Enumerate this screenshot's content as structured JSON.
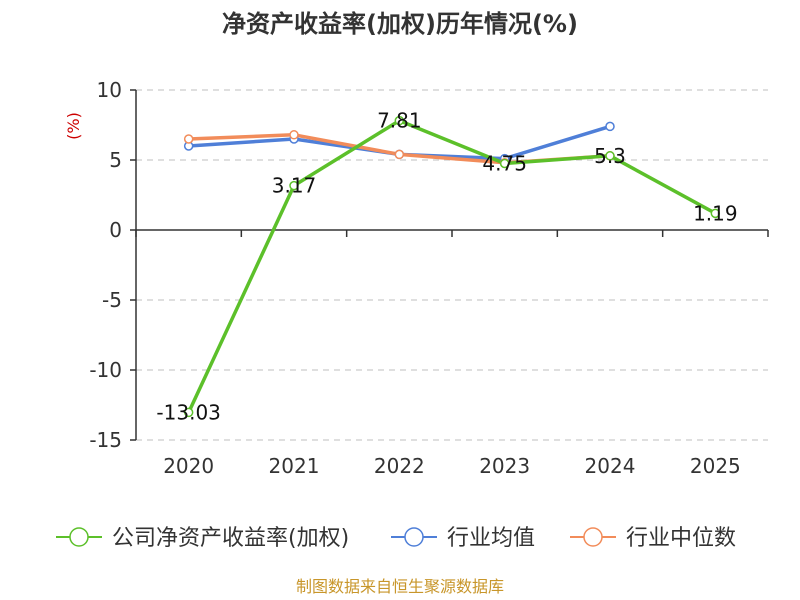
{
  "chart_data": {
    "type": "line",
    "title": "净资产收益率(加权)历年情况(%)",
    "ylabel": "(%)",
    "categories": [
      "2020",
      "2021",
      "2022",
      "2023",
      "2024",
      "2025"
    ],
    "ylim": [
      -15,
      10
    ],
    "yticks": [
      10,
      5,
      0,
      -5,
      -10,
      -15
    ],
    "grid": true,
    "legend_position": "bottom",
    "series": [
      {
        "name": "公司净资产收益率(加权)",
        "color": "#5cc02a",
        "values": [
          -13.03,
          3.17,
          7.81,
          4.75,
          5.3,
          1.19
        ],
        "labels": [
          "-13.03",
          "3.17",
          "7.81",
          "4.75",
          "5.3",
          "1.19"
        ]
      },
      {
        "name": "行业均值",
        "color": "#4f7fd8",
        "values": [
          6.0,
          6.5,
          5.4,
          5.1,
          7.4,
          null
        ]
      },
      {
        "name": "行业中位数",
        "color": "#f28c5a",
        "values": [
          6.5,
          6.8,
          5.4,
          4.8,
          5.3,
          null
        ]
      }
    ]
  },
  "footer": {
    "source": "制图数据来自恒生聚源数据库"
  }
}
